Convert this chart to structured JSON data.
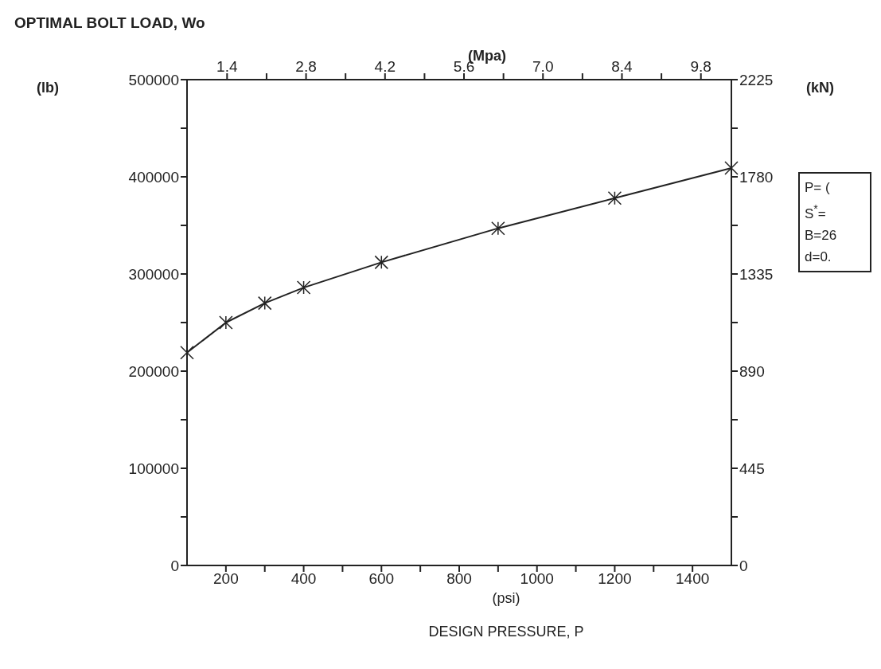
{
  "chart_data": {
    "type": "line",
    "title": "OPTIMAL BOLT LOAD, Wo",
    "xlabel": "(psi)\nDESIGN PRESSURE, P",
    "ylabel": "(lb)",
    "y2label": "(kN)",
    "x2label": "(Mpa)",
    "annotations": [
      "P= (",
      "S$^{*}$=",
      "B=26",
      "d=0."
    ],
    "x": [
      100,
      200,
      300,
      400,
      600,
      900,
      1200,
      1500
    ],
    "series": [
      {
        "color": "#222222",
        "values": [
          219000,
          250000,
          270000,
          286000,
          312000,
          347000,
          378000,
          409000
        ]
      }
    ],
    "xlim": [
      100,
      1500
    ],
    "xticks": [
      200,
      {
        "value": 300,
        "label": null
      },
      400,
      {
        "value": 500,
        "label": null
      },
      600,
      {
        "value": 700,
        "label": null
      },
      800,
      {
        "value": 900,
        "label": null
      },
      1000,
      {
        "value": 1100,
        "label": null
      },
      1200,
      {
        "value": 1300,
        "label": null
      },
      1400
    ],
    "x2lim": [
      0.69,
      10.34
    ],
    "x2ticks": [
      1.4,
      {
        "value": 2.1,
        "label": null
      },
      2.8,
      {
        "value": 3.5,
        "label": null
      },
      4.2,
      {
        "value": 4.9,
        "label": null
      },
      5.6,
      {
        "value": 6.3,
        "label": null
      },
      {
        "value": 7,
        "label": "7.0"
      },
      {
        "value": 7.7,
        "label": null
      },
      8.4,
      {
        "value": 9.1,
        "label": null
      },
      9.8
    ],
    "ylim": [
      0,
      500000
    ],
    "yticks": [
      0,
      {
        "value": 50000,
        "label": null
      },
      100000,
      {
        "value": 150000,
        "label": null
      },
      200000,
      {
        "value": 250000,
        "label": null
      },
      300000,
      {
        "value": 350000,
        "label": null
      },
      400000,
      {
        "value": 450000,
        "label": null
      },
      500000
    ],
    "y2lim": [
      0,
      2225
    ],
    "y2ticks": [
      0,
      {
        "value": 222.5,
        "label": null
      },
      445,
      {
        "value": 667.5,
        "label": null
      },
      890,
      {
        "value": 1112.5,
        "label": null
      },
      1335,
      {
        "value": 1557.5,
        "label": null
      },
      1780,
      {
        "value": 2002.5,
        "label": null
      },
      2225
    ],
    "grid": false,
    "legend": false,
    "marker": "cross",
    "line_style": "solid"
  }
}
